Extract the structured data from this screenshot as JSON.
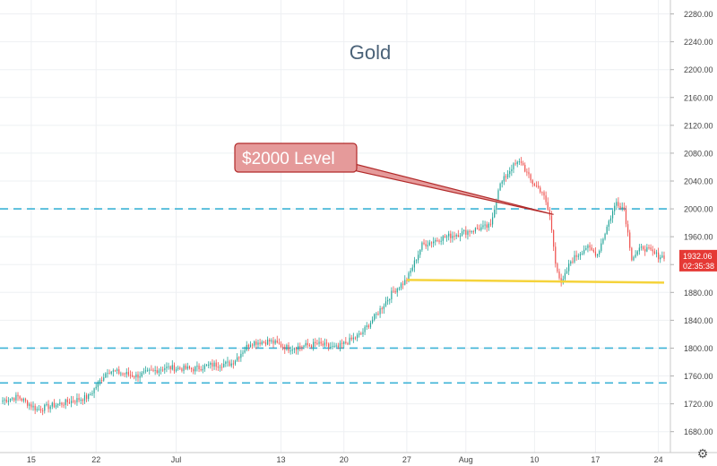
{
  "chart_data": {
    "type": "candlestick",
    "title": "Gold",
    "ylim": [
      1650,
      2300
    ],
    "y_ticks": [
      1680,
      1720,
      1760,
      1800,
      1840,
      1880,
      1920,
      1960,
      2000,
      2040,
      2080,
      2120,
      2160,
      2200,
      2240,
      2280
    ],
    "x_ticks": [
      {
        "label": "15",
        "index": 15
      },
      {
        "label": "22",
        "index": 49
      },
      {
        "label": "Jul",
        "index": 91
      },
      {
        "label": "13",
        "index": 146
      },
      {
        "label": "20",
        "index": 179
      },
      {
        "label": "27",
        "index": 212
      },
      {
        "label": "Aug",
        "index": 243
      },
      {
        "label": "10",
        "index": 279
      },
      {
        "label": "17",
        "index": 311
      },
      {
        "label": "24",
        "index": 344
      }
    ],
    "series_anchors": [
      [
        0,
        1725
      ],
      [
        8,
        1730
      ],
      [
        18,
        1712
      ],
      [
        30,
        1720
      ],
      [
        45,
        1730
      ],
      [
        55,
        1768
      ],
      [
        70,
        1760
      ],
      [
        85,
        1772
      ],
      [
        100,
        1770
      ],
      [
        110,
        1776
      ],
      [
        120,
        1778
      ],
      [
        130,
        1808
      ],
      [
        140,
        1810
      ],
      [
        150,
        1800
      ],
      [
        165,
        1806
      ],
      [
        175,
        1800
      ],
      [
        188,
        1820
      ],
      [
        196,
        1848
      ],
      [
        205,
        1882
      ],
      [
        212,
        1898
      ],
      [
        220,
        1948
      ],
      [
        230,
        1958
      ],
      [
        240,
        1965
      ],
      [
        250,
        1972
      ],
      [
        256,
        1975
      ],
      [
        260,
        2030
      ],
      [
        267,
        2060
      ],
      [
        272,
        2068
      ],
      [
        277,
        2040
      ],
      [
        283,
        2025
      ],
      [
        287,
        1990
      ],
      [
        290,
        1925
      ],
      [
        293,
        1890
      ],
      [
        298,
        1925
      ],
      [
        306,
        1945
      ],
      [
        312,
        1935
      ],
      [
        318,
        1982
      ],
      [
        322,
        2010
      ],
      [
        326,
        2000
      ],
      [
        330,
        1930
      ],
      [
        336,
        1945
      ],
      [
        344,
        1932
      ],
      [
        347,
        1932
      ]
    ],
    "n_candles": 348,
    "last_price": "1932.06",
    "countdown": "02:35:38",
    "horizontal_levels": [
      {
        "value": 2000,
        "style": "dashed",
        "color": "#3db3d6"
      },
      {
        "value": 1800,
        "style": "dashed",
        "color": "#3db3d6"
      },
      {
        "value": 1750,
        "style": "dashed",
        "color": "#3db3d6"
      }
    ],
    "trend_line": {
      "from": [
        212,
        1898
      ],
      "to": [
        347,
        1894
      ],
      "color": "#f5d33b"
    },
    "callout": {
      "text": "$2000 Level",
      "target": [
        289,
        1992
      ]
    },
    "colors": {
      "up": "#26a69a",
      "down": "#ef5350",
      "grid": "#eef0f3",
      "price_tag": "#e53935"
    }
  },
  "settings_icon": "gear-icon"
}
